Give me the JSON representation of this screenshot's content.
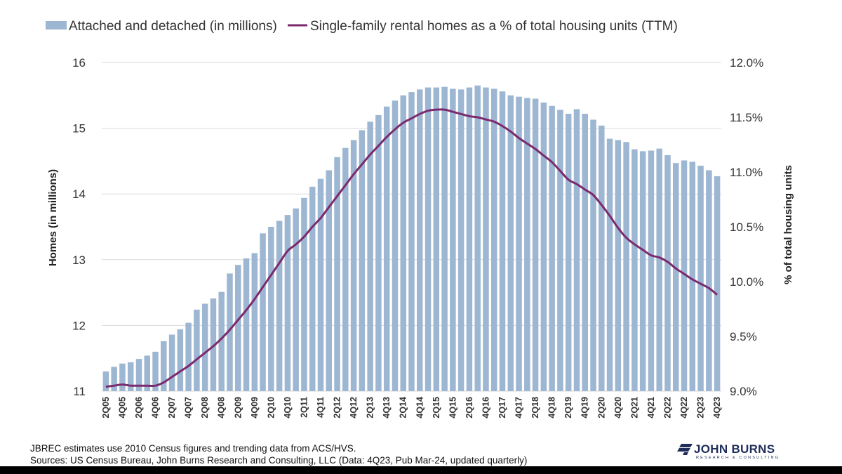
{
  "chart_data": {
    "type": "bar",
    "categories": [
      "2Q05",
      "3Q05",
      "4Q05",
      "1Q06",
      "2Q06",
      "3Q06",
      "4Q06",
      "1Q07",
      "2Q07",
      "3Q07",
      "4Q07",
      "1Q08",
      "2Q08",
      "3Q08",
      "4Q08",
      "1Q09",
      "2Q09",
      "3Q09",
      "4Q09",
      "1Q10",
      "2Q10",
      "3Q10",
      "4Q10",
      "1Q11",
      "2Q11",
      "3Q11",
      "4Q11",
      "1Q12",
      "2Q12",
      "3Q12",
      "4Q12",
      "1Q13",
      "2Q13",
      "3Q13",
      "4Q13",
      "1Q14",
      "2Q14",
      "3Q14",
      "4Q14",
      "1Q15",
      "2Q15",
      "3Q15",
      "4Q15",
      "1Q16",
      "2Q16",
      "3Q16",
      "4Q16",
      "1Q17",
      "2Q17",
      "3Q17",
      "4Q17",
      "1Q18",
      "2Q18",
      "3Q18",
      "4Q18",
      "1Q19",
      "2Q19",
      "3Q19",
      "4Q19",
      "1Q20",
      "2Q20",
      "3Q20",
      "4Q20",
      "1Q21",
      "2Q21",
      "3Q21",
      "4Q21",
      "1Q22",
      "2Q22",
      "3Q22",
      "4Q22",
      "1Q23",
      "2Q23",
      "3Q23",
      "4Q23"
    ],
    "x_tick_labels": [
      "2Q05",
      "4Q05",
      "2Q06",
      "4Q06",
      "2Q07",
      "4Q07",
      "2Q08",
      "4Q08",
      "2Q09",
      "4Q09",
      "2Q10",
      "4Q10",
      "2Q11",
      "4Q11",
      "2Q12",
      "4Q12",
      "2Q13",
      "4Q13",
      "2Q14",
      "4Q14",
      "2Q15",
      "4Q15",
      "2Q16",
      "4Q16",
      "2Q17",
      "4Q17",
      "2Q18",
      "4Q18",
      "2Q19",
      "4Q19",
      "2Q20",
      "4Q20",
      "2Q21",
      "4Q21",
      "2Q22",
      "4Q22",
      "2Q23",
      "4Q23"
    ],
    "series": [
      {
        "name": "Attached and detached (in millions)",
        "type": "bar",
        "axis": "left",
        "color": "#9db6d1",
        "values": [
          11.3,
          11.37,
          11.42,
          11.44,
          11.49,
          11.54,
          11.6,
          11.76,
          11.86,
          11.94,
          12.04,
          12.24,
          12.33,
          12.41,
          12.51,
          12.79,
          12.92,
          13.02,
          13.1,
          13.4,
          13.5,
          13.59,
          13.68,
          13.78,
          13.94,
          14.11,
          14.23,
          14.36,
          14.56,
          14.7,
          14.82,
          14.97,
          15.1,
          15.2,
          15.33,
          15.42,
          15.5,
          15.55,
          15.59,
          15.62,
          15.62,
          15.63,
          15.6,
          15.59,
          15.62,
          15.65,
          15.62,
          15.6,
          15.56,
          15.5,
          15.48,
          15.46,
          15.45,
          15.39,
          15.34,
          15.28,
          15.22,
          15.29,
          15.22,
          15.13,
          15.04,
          14.84,
          14.82,
          14.79,
          14.68,
          14.65,
          14.66,
          14.69,
          14.59,
          14.47,
          14.51,
          14.49,
          14.43,
          14.36,
          14.27
        ]
      },
      {
        "name": "Single-family rental homes as a % of total housing units (TTM)",
        "type": "line",
        "axis": "right",
        "color": "#7b2a6e",
        "values": [
          9.04,
          9.05,
          9.06,
          9.05,
          9.05,
          9.05,
          9.05,
          9.08,
          9.13,
          9.18,
          9.23,
          9.29,
          9.35,
          9.41,
          9.48,
          9.56,
          9.65,
          9.74,
          9.84,
          9.95,
          10.06,
          10.17,
          10.28,
          10.34,
          10.41,
          10.5,
          10.58,
          10.68,
          10.78,
          10.88,
          10.98,
          11.07,
          11.16,
          11.24,
          11.32,
          11.39,
          11.45,
          11.49,
          11.53,
          11.56,
          11.57,
          11.57,
          11.55,
          11.53,
          11.51,
          11.5,
          11.48,
          11.46,
          11.42,
          11.37,
          11.31,
          11.26,
          11.21,
          11.15,
          11.09,
          11.01,
          10.93,
          10.89,
          10.84,
          10.79,
          10.7,
          10.6,
          10.49,
          10.4,
          10.34,
          10.29,
          10.24,
          10.22,
          10.18,
          10.12,
          10.07,
          10.02,
          9.98,
          9.94,
          9.88
        ]
      }
    ],
    "ylim": [
      11,
      16
    ],
    "yticks": [
      "11",
      "12",
      "13",
      "14",
      "15",
      "16"
    ],
    "y2lim": [
      9.0,
      12.0
    ],
    "y2ticks": [
      "9.0%",
      "9.5%",
      "10.0%",
      "10.5%",
      "11.0%",
      "11.5%",
      "12.0%"
    ],
    "ylabel": "Homes (in millions)",
    "y2label": "% of total housing units",
    "xlabel": "",
    "grid": "horizontal",
    "legend": "top-left"
  },
  "footer": {
    "note": "JBREC estimates use 2010 Census figures and trending data from ACS/HVS.",
    "sources": "Sources: US Census Bureau,  John Burns Research and Consulting, LLC (Data: 4Q23, Pub Mar-24, updated quarterly)"
  },
  "logo": {
    "name": "JOHN BURNS",
    "tagline": "RESEARCH & CONSULTING"
  }
}
